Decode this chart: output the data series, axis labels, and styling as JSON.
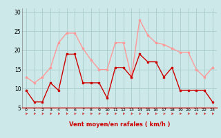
{
  "xlabel": "Vent moyen/en rafales ( km/h )",
  "x": [
    0,
    1,
    2,
    3,
    4,
    5,
    6,
    7,
    8,
    9,
    10,
    11,
    12,
    13,
    14,
    15,
    16,
    17,
    18,
    19,
    20,
    21,
    22,
    23
  ],
  "vent_moyen": [
    9.5,
    6.5,
    6.5,
    11.5,
    9.5,
    19.0,
    19.0,
    11.5,
    11.5,
    11.5,
    7.5,
    15.5,
    15.5,
    13.0,
    19.0,
    17.0,
    17.0,
    13.0,
    15.5,
    9.5,
    9.5,
    9.5,
    9.5,
    6.5
  ],
  "rafales": [
    13.0,
    11.5,
    13.0,
    15.5,
    22.0,
    24.5,
    24.5,
    20.5,
    17.5,
    15.0,
    15.0,
    22.0,
    22.0,
    13.0,
    28.0,
    24.0,
    22.0,
    21.5,
    20.5,
    19.5,
    19.5,
    15.0,
    13.0,
    15.5
  ],
  "color_moyen": "#cc0000",
  "color_rafales": "#ff9999",
  "background": "#cce8e8",
  "grid_color": "#aacccc",
  "ylim": [
    5,
    31
  ],
  "yticks": [
    5,
    10,
    15,
    20,
    25,
    30
  ],
  "arrow_color": "#cc3333"
}
